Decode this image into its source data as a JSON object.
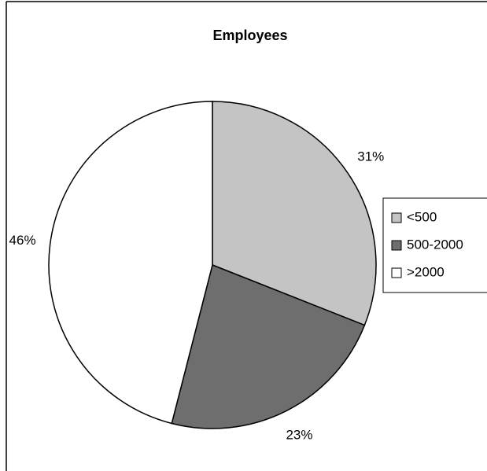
{
  "chart_data": {
    "type": "pie",
    "title": "Employees",
    "categories": [
      "<500",
      "500-2000",
      ">2000"
    ],
    "values": [
      31,
      23,
      46
    ],
    "value_labels": [
      "31%",
      "23%",
      "46%"
    ],
    "colors": [
      "#c4c4c4",
      "#6e6e6e",
      "#ffffff"
    ],
    "legend": "right"
  }
}
